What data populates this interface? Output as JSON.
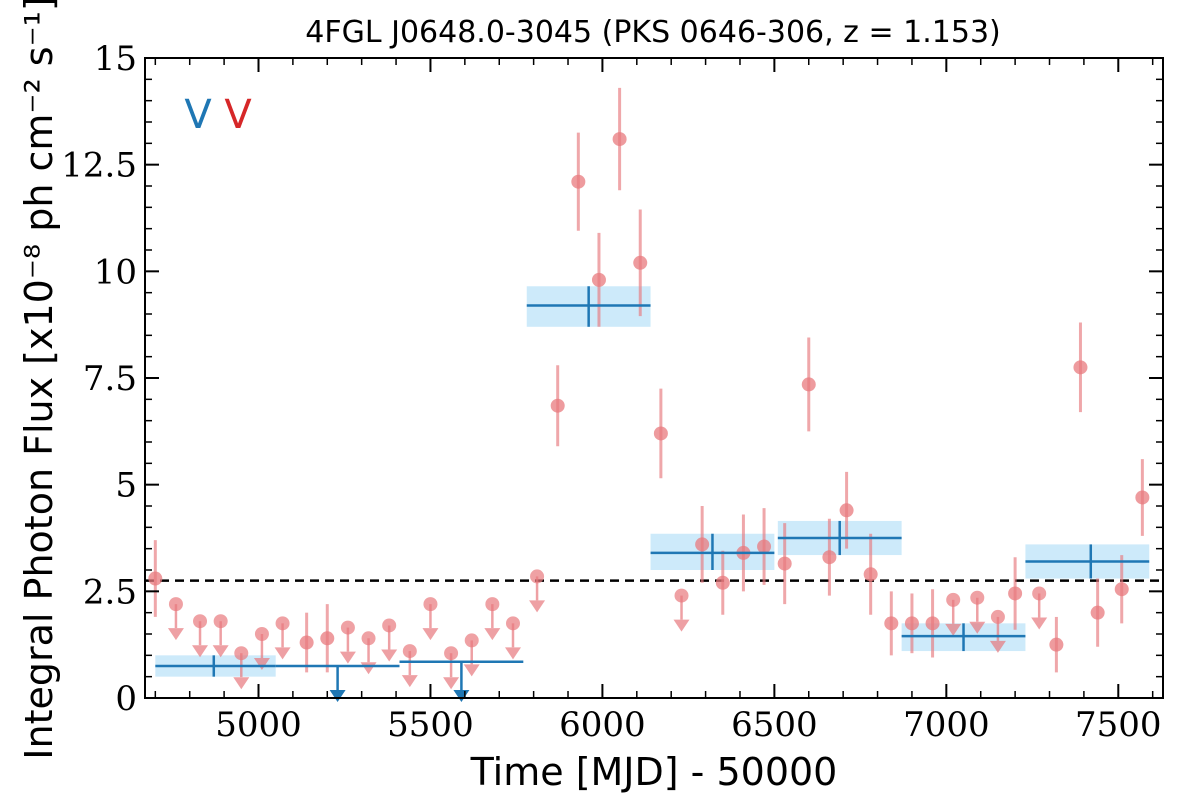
{
  "chart_data": {
    "type": "scatter",
    "title": "4FGL J0648.0-3045 (PKS 0646-306, z = 1.153)",
    "xlabel": "Time [MJD] - 50000",
    "ylabel": "Integral Photon Flux [x10⁻⁸ ph cm⁻² s⁻¹]",
    "xlim": [
      4670,
      7630
    ],
    "ylim": [
      0,
      15
    ],
    "xticks": [
      5000,
      5500,
      6000,
      6500,
      7000,
      7500
    ],
    "xtick_labels": [
      "5000",
      "5500",
      "6000",
      "6500",
      "7000",
      "7500"
    ],
    "yticks": [
      0,
      2.5,
      5,
      7.5,
      10,
      12.5,
      15
    ],
    "ytick_labels": [
      "0",
      "2.5",
      "5",
      "7.5",
      "10",
      "12.5",
      "15"
    ],
    "grid": false,
    "mean_flux_line": 2.75,
    "annotations": [
      {
        "text": "V",
        "color": "#1f77b4"
      },
      {
        "text": "V",
        "color": "#d62728"
      }
    ],
    "series": [
      {
        "kind": "short_bin_detections",
        "color": "#e8797e",
        "points": [
          {
            "x": 4700,
            "y": 2.8,
            "err": 0.9
          },
          {
            "x": 5870,
            "y": 6.85,
            "err": 0.95
          },
          {
            "x": 5930,
            "y": 12.1,
            "err": 1.15
          },
          {
            "x": 5990,
            "y": 9.8,
            "err": 1.1
          },
          {
            "x": 6050,
            "y": 13.1,
            "err": 1.2
          },
          {
            "x": 6110,
            "y": 10.2,
            "err": 1.25
          },
          {
            "x": 6170,
            "y": 6.2,
            "err": 1.05
          },
          {
            "x": 6290,
            "y": 3.6,
            "err": 0.9
          },
          {
            "x": 6350,
            "y": 2.7,
            "err": 0.75
          },
          {
            "x": 6410,
            "y": 3.4,
            "err": 0.9
          },
          {
            "x": 6470,
            "y": 3.55,
            "err": 0.9
          },
          {
            "x": 6530,
            "y": 3.15,
            "err": 0.95
          },
          {
            "x": 6600,
            "y": 7.35,
            "err": 1.1
          },
          {
            "x": 6660,
            "y": 3.3,
            "err": 0.9
          },
          {
            "x": 6710,
            "y": 4.4,
            "err": 0.9
          },
          {
            "x": 6780,
            "y": 2.9,
            "err": 0.95
          },
          {
            "x": 6840,
            "y": 1.75,
            "err": 0.75
          },
          {
            "x": 6900,
            "y": 1.75,
            "err": 0.7
          },
          {
            "x": 6960,
            "y": 1.75,
            "err": 0.8
          },
          {
            "x": 7200,
            "y": 2.45,
            "err": 0.85
          },
          {
            "x": 7320,
            "y": 1.25,
            "err": 0.65
          },
          {
            "x": 7390,
            "y": 7.75,
            "err": 1.05
          },
          {
            "x": 7440,
            "y": 2.0,
            "err": 0.8
          },
          {
            "x": 7510,
            "y": 2.55,
            "err": 0.8
          },
          {
            "x": 7570,
            "y": 4.7,
            "err": 0.9
          }
        ]
      },
      {
        "kind": "short_bin_upper_limits",
        "color": "#e8797e",
        "points": [
          {
            "x": 4760,
            "y": 2.2
          },
          {
            "x": 4830,
            "y": 1.8
          },
          {
            "x": 4890,
            "y": 1.8
          },
          {
            "x": 4950,
            "y": 1.05
          },
          {
            "x": 5010,
            "y": 1.5
          },
          {
            "x": 5070,
            "y": 1.75
          },
          {
            "x": 5260,
            "y": 1.65
          },
          {
            "x": 5320,
            "y": 1.4
          },
          {
            "x": 5380,
            "y": 1.7
          },
          {
            "x": 5440,
            "y": 1.1
          },
          {
            "x": 5500,
            "y": 2.2
          },
          {
            "x": 5560,
            "y": 1.05
          },
          {
            "x": 5620,
            "y": 1.35
          },
          {
            "x": 5680,
            "y": 2.2
          },
          {
            "x": 5740,
            "y": 1.75
          },
          {
            "x": 5810,
            "y": 2.85
          },
          {
            "x": 6230,
            "y": 2.4
          },
          {
            "x": 7020,
            "y": 2.3
          },
          {
            "x": 7090,
            "y": 2.35
          },
          {
            "x": 7150,
            "y": 1.9
          },
          {
            "x": 7270,
            "y": 2.45
          }
        ]
      },
      {
        "kind": "short_bin_ul_points",
        "color": "#e8797e",
        "points": [
          {
            "x": 5140,
            "y": 1.3,
            "err": 0.7
          },
          {
            "x": 5200,
            "y": 1.4,
            "err": 0.8
          }
        ]
      },
      {
        "kind": "long_bin_detections",
        "color": "#1f77b4",
        "band_color": "#cdeafa",
        "points": [
          {
            "x": 4870,
            "x0": 4700,
            "x1": 5050,
            "y": 0.75,
            "ylo": 0.5,
            "yhi": 1.0
          },
          {
            "x": 5960,
            "x0": 5780,
            "x1": 6140,
            "y": 9.2,
            "ylo": 8.7,
            "yhi": 9.65
          },
          {
            "x": 6320,
            "x0": 6140,
            "x1": 6500,
            "y": 3.4,
            "ylo": 3.0,
            "yhi": 3.85
          },
          {
            "x": 6690,
            "x0": 6510,
            "x1": 6870,
            "y": 3.75,
            "ylo": 3.35,
            "yhi": 4.15
          },
          {
            "x": 7050,
            "x0": 6870,
            "x1": 7230,
            "y": 1.45,
            "ylo": 1.1,
            "yhi": 1.75
          },
          {
            "x": 7420,
            "x0": 7230,
            "x1": 7590,
            "y": 3.2,
            "ylo": 2.8,
            "yhi": 3.6
          }
        ]
      },
      {
        "kind": "long_bin_upper_limits",
        "color": "#1f77b4",
        "points": [
          {
            "x": 5230,
            "x0": 5050,
            "x1": 5410,
            "y": 0.75
          },
          {
            "x": 5590,
            "x0": 5410,
            "x1": 5770,
            "y": 0.85
          }
        ]
      }
    ]
  }
}
